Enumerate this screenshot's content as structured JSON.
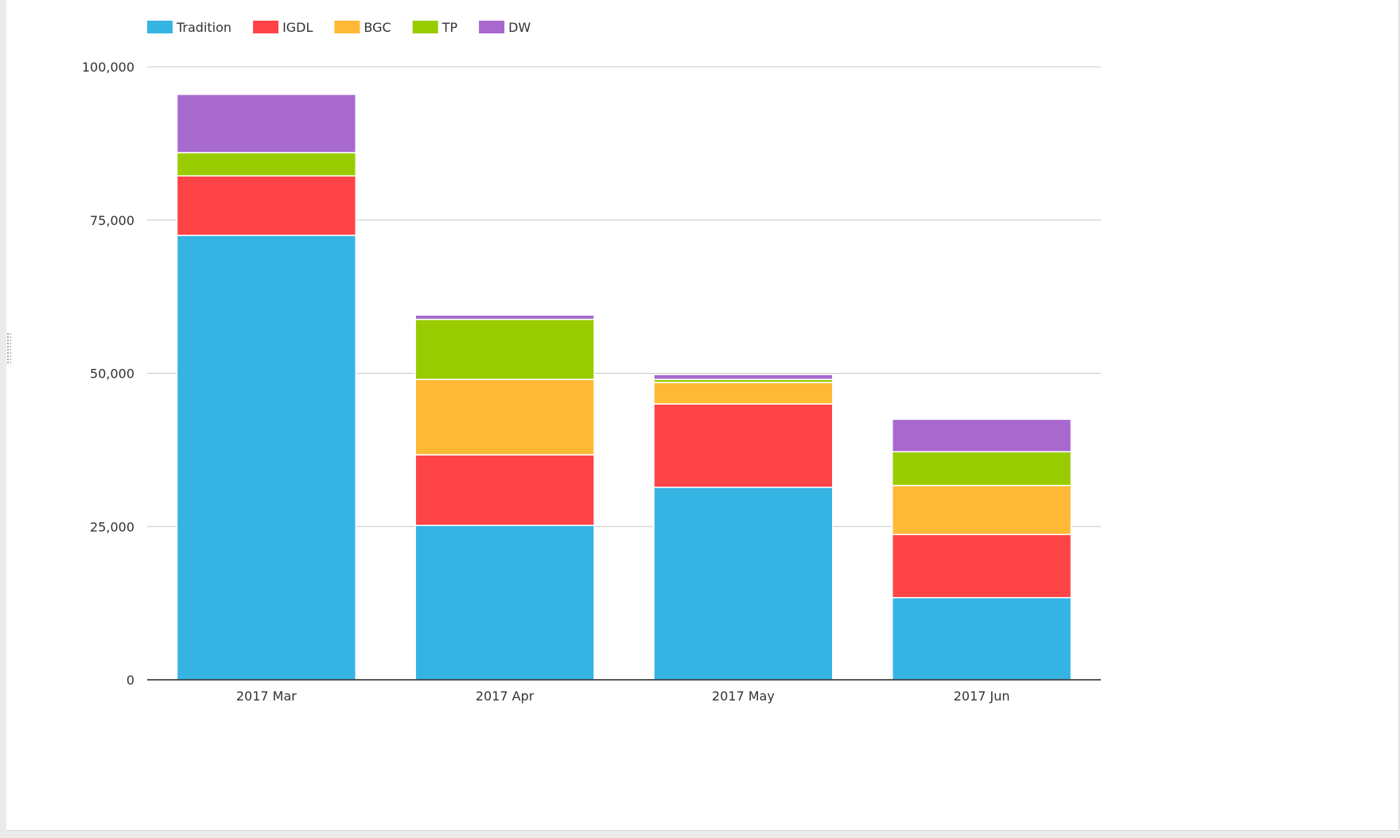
{
  "chart_data": {
    "type": "bar",
    "stacked": true,
    "title": "",
    "xlabel": "",
    "ylabel": "",
    "categories": [
      "2017 Mar",
      "2017 Apr",
      "2017 May",
      "2017 Jun"
    ],
    "series": [
      {
        "name": "Tradition",
        "color": "#35b4e4",
        "values": [
          72500,
          25200,
          31400,
          13400
        ]
      },
      {
        "name": "IGDL",
        "color": "#ff4447",
        "values": [
          9700,
          11500,
          13600,
          10300
        ]
      },
      {
        "name": "BGC",
        "color": "#ffb935",
        "values": [
          0,
          12300,
          3500,
          8000
        ]
      },
      {
        "name": "TP",
        "color": "#99cc00",
        "values": [
          3800,
          9800,
          500,
          5500
        ]
      },
      {
        "name": "DW",
        "color": "#a869cf",
        "values": [
          9500,
          700,
          800,
          5300
        ]
      }
    ],
    "ylim": [
      0,
      100000
    ],
    "yticks": [
      0,
      25000,
      50000,
      75000,
      100000
    ],
    "ytick_labels": [
      "0",
      "25,000",
      "50,000",
      "75,000",
      "100,000"
    ],
    "grid": true,
    "legend_position": "top-left"
  }
}
